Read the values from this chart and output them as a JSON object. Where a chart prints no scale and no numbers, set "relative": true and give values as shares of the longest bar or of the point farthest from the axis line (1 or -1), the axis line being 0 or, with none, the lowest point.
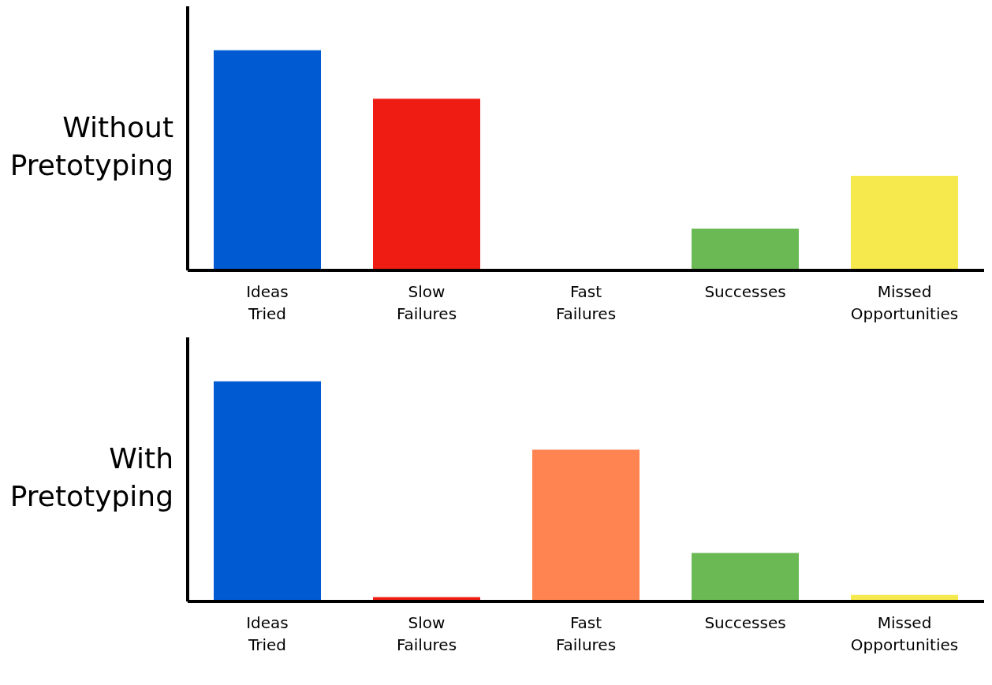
{
  "chart_data": [
    {
      "type": "bar",
      "ylabel": "Without Pretotyping",
      "relative": true,
      "categories": [
        "Ideas Tried",
        "Slow Failures",
        "Fast Failures",
        "Successes",
        "Missed Opportunities"
      ],
      "values": [
        1,
        0.78,
        0,
        0.19,
        0.43
      ],
      "colors": [
        "#005bd3",
        "#ee1c13",
        "#ff8452",
        "#6ab955",
        "#f5e94e"
      ],
      "grid": false,
      "legend": false
    },
    {
      "type": "bar",
      "ylabel": "With Pretotyping",
      "relative": true,
      "categories": [
        "Ideas Tried",
        "Slow Failures",
        "Fast Failures",
        "Successes",
        "Missed Opportunities"
      ],
      "values": [
        1,
        0.02,
        0.69,
        0.22,
        0.03
      ],
      "colors": [
        "#005bd3",
        "#ee1c13",
        "#ff8452",
        "#6ab955",
        "#f5e94e"
      ],
      "grid": false,
      "legend": false
    }
  ]
}
